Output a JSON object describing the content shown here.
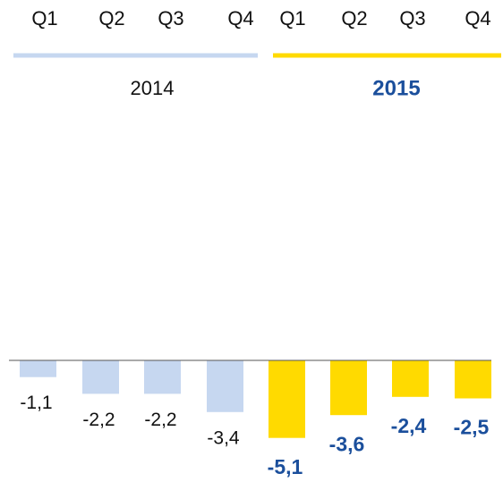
{
  "chart_data": {
    "type": "bar",
    "categories": [
      "Q1",
      "Q2",
      "Q3",
      "Q4",
      "Q1",
      "Q2",
      "Q3",
      "Q4"
    ],
    "series": [
      {
        "name": "2014",
        "color": "#c6d7f0",
        "label_color": "#111111",
        "values": [
          -1.1,
          -2.2,
          -2.2,
          -3.4,
          null,
          null,
          null,
          null
        ],
        "value_labels": [
          "-1,1",
          "-2,2",
          "-2,2",
          "-3,4",
          null,
          null,
          null,
          null
        ]
      },
      {
        "name": "2015",
        "color": "#ffda00",
        "label_color": "#1b4f9c",
        "values": [
          null,
          null,
          null,
          null,
          -5.1,
          -3.6,
          -2.4,
          -2.5
        ],
        "value_labels": [
          null,
          null,
          null,
          null,
          "-5,1",
          "-3,6",
          "-2,4",
          "-2,5"
        ]
      }
    ]
  }
}
